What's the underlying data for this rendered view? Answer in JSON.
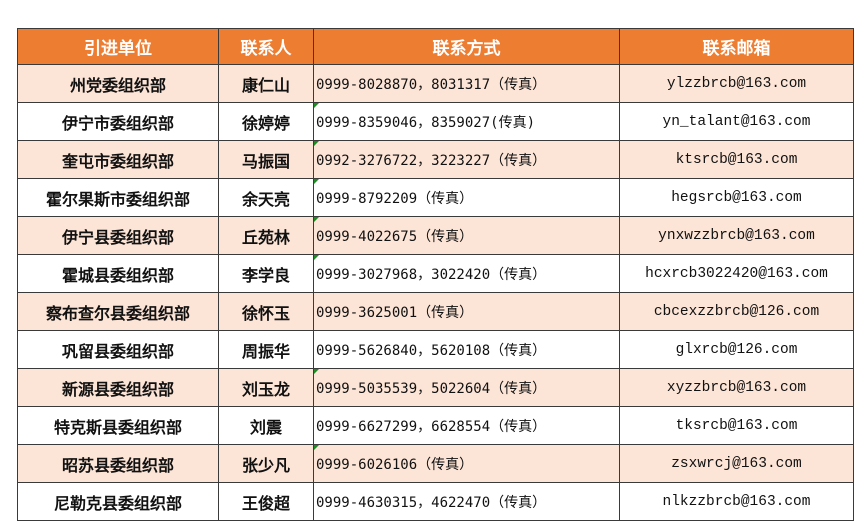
{
  "header": {
    "unit": "引进单位",
    "person": "联系人",
    "phone": "联系方式",
    "email": "联系邮箱"
  },
  "colors": {
    "header_bg": "#ED7D31",
    "alt_row_bg": "#FCE4D6",
    "error_flag": "#1f8b24"
  },
  "rows": [
    {
      "unit": "州党委组织部",
      "person": "康仁山",
      "phone": "0999-8028870，8031317（传真）",
      "email": "ylzzbrcb@163.com",
      "flag": false
    },
    {
      "unit": "伊宁市委组织部",
      "person": "徐婷婷",
      "phone": "0999-8359046，8359027(传真)",
      "email": "yn_talant@163.com",
      "flag": true
    },
    {
      "unit": "奎屯市委组织部",
      "person": "马振国",
      "phone": "0992-3276722，3223227（传真）",
      "email": "ktsrcb@163.com",
      "flag": true
    },
    {
      "unit": "霍尔果斯市委组织部",
      "person": "余天亮",
      "phone": "0999-8792209（传真）",
      "email": "hegsrcb@163.com",
      "flag": true
    },
    {
      "unit": "伊宁县委组织部",
      "person": "丘苑林",
      "phone": "0999-4022675（传真）",
      "email": "ynxwzzbrcb@163.com",
      "flag": true
    },
    {
      "unit": "霍城县委组织部",
      "person": "李学良",
      "phone": "0999-3027968，3022420（传真）",
      "email": "hcxrcb3022420@163.com",
      "flag": true
    },
    {
      "unit": "察布查尔县委组织部",
      "person": "徐怀玉",
      "phone": "0999-3625001（传真）",
      "email": "cbcexzzbrcb@126.com",
      "flag": false
    },
    {
      "unit": "巩留县委组织部",
      "person": "周振华",
      "phone": "0999-5626840，5620108（传真）",
      "email": "glxrcb@126.com",
      "flag": false
    },
    {
      "unit": "新源县委组织部",
      "person": "刘玉龙",
      "phone": "0999-5035539，5022604（传真）",
      "email": "xyzzbrcb@163.com",
      "flag": true
    },
    {
      "unit": "特克斯县委组织部",
      "person": "刘震",
      "phone": "0999-6627299，6628554（传真）",
      "email": "tksrcb@163.com",
      "flag": false
    },
    {
      "unit": "昭苏县委组织部",
      "person": "张少凡",
      "phone": "0999-6026106（传真）",
      "email": "zsxwrcj@163.com",
      "flag": true
    },
    {
      "unit": "尼勒克县委组织部",
      "person": "王俊超",
      "phone": "0999-4630315，4622470（传真）",
      "email": "nlkzzbrcb@163.com",
      "flag": false
    }
  ]
}
